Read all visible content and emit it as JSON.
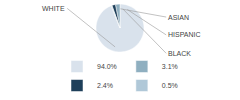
{
  "chart_data": {
    "type": "pie",
    "categories": [
      "94.0%",
      "3.1%",
      "2.4%",
      "0.5%"
    ],
    "values": [
      94.0,
      3.1,
      2.4,
      0.5
    ],
    "colors": [
      "#d9e2ec",
      "#8fafc0",
      "#1e3f5a",
      "#b0c8d8"
    ],
    "legend": "bottom",
    "annotations": [
      {
        "text": "WHITE",
        "category": "94.0%"
      },
      {
        "text": "ASIAN",
        "category": "0.5%"
      },
      {
        "text": "HISPANIC",
        "category": "3.1%"
      },
      {
        "text": "BLACK",
        "category": "2.4%"
      }
    ]
  }
}
